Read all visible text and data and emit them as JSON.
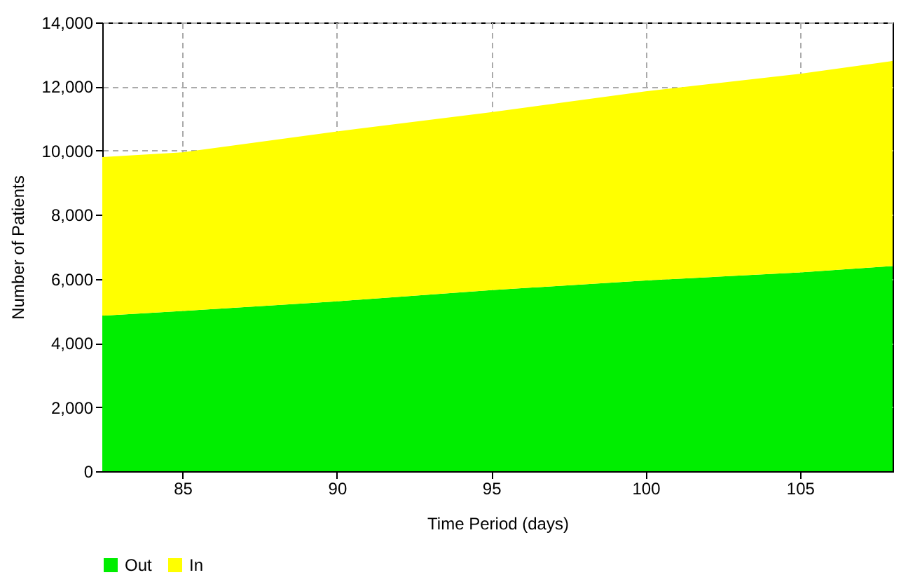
{
  "chart_data": {
    "type": "area",
    "stacked": true,
    "xlabel": "Time Period (days)",
    "ylabel": "Number of Patients",
    "x": [
      82.4,
      85,
      90,
      95,
      100,
      105,
      108
    ],
    "series": [
      {
        "name": "Out",
        "color": "#00ee00",
        "values": [
          4850,
          5000,
          5300,
          5650,
          5950,
          6200,
          6400
        ]
      },
      {
        "name": "In",
        "color": "#ffff00",
        "values": [
          4950,
          4950,
          5300,
          5550,
          5900,
          6200,
          6400
        ]
      }
    ],
    "xlim": [
      82.4,
      108
    ],
    "xticks": [
      85,
      90,
      95,
      100,
      105
    ],
    "ylim": [
      0,
      14000
    ],
    "yticks": [
      0,
      {
        "value": 2000,
        "label": "2,000"
      },
      {
        "value": 4000,
        "label": "4,000"
      },
      {
        "value": 6000,
        "label": "6,000"
      },
      {
        "value": 8000,
        "label": "8,000"
      },
      {
        "value": 10000,
        "label": "10,000"
      },
      {
        "value": 12000,
        "label": "12,000"
      },
      {
        "value": 14000,
        "label": "14,000"
      }
    ],
    "grid": true,
    "legend": "bottom"
  }
}
